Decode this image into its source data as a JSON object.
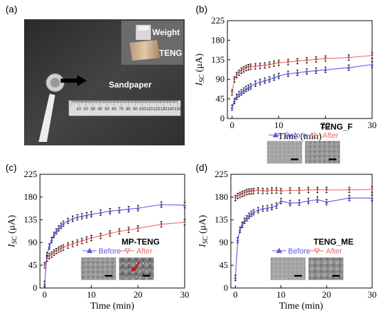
{
  "panels": {
    "a": {
      "label": "(a)",
      "photo_labels": {
        "weight": "Weight",
        "teng": "TENG",
        "sandpaper": "Sandpaper"
      },
      "ruler_numbers": [
        "10",
        "20",
        "30",
        "40",
        "50",
        "60",
        "70",
        "80",
        "90",
        "100",
        "110",
        "120",
        "130",
        "140",
        "150"
      ],
      "colors": {
        "background": "#3b3b3b",
        "ruler": "#dcdcdc",
        "tweezer": "#eeeeee",
        "arrow": "#000000",
        "ruler_accent": "#c8102e"
      }
    }
  },
  "chart_data": [
    {
      "panel": "(b)",
      "type": "line",
      "sample_label": "TENG_F",
      "xlabel": "Time (min)",
      "ylabel_main": "I",
      "ylabel_sub": "SC",
      "ylabel_unit": " (μA)",
      "xlim": [
        -1,
        30
      ],
      "ylim": [
        0,
        225
      ],
      "xticks": [
        0,
        10,
        20,
        30
      ],
      "yticks": [
        0,
        45,
        90,
        135,
        180,
        225
      ],
      "legend_position": "lower-right",
      "series": [
        {
          "name": "Before",
          "color": "#5a5ae6",
          "marker": "triangle-up",
          "x": [
            0,
            0.5,
            1,
            1.5,
            2,
            2.5,
            3,
            3.5,
            4,
            5,
            6,
            7,
            8,
            9,
            10,
            12,
            14,
            16,
            18,
            20,
            25,
            30
          ],
          "y": [
            25,
            40,
            50,
            56,
            60,
            64,
            68,
            71,
            74,
            80,
            84,
            87,
            90,
            94,
            98,
            103,
            105,
            108,
            110,
            112,
            117,
            124
          ]
        },
        {
          "name": "After",
          "color": "#ec6a6a",
          "marker": "triangle-down",
          "x": [
            0,
            0.5,
            1,
            1.5,
            2,
            2.5,
            3,
            3.5,
            4,
            5,
            6,
            7,
            8,
            9,
            10,
            12,
            14,
            16,
            18,
            20,
            25,
            30
          ],
          "y": [
            60,
            90,
            100,
            105,
            110,
            113,
            116,
            118,
            119,
            120,
            121,
            122,
            124,
            126,
            128,
            130,
            132,
            134,
            136,
            138,
            140,
            145
          ]
        }
      ]
    },
    {
      "panel": "(c)",
      "type": "line",
      "sample_label": "MP-TENG",
      "xlabel": "Time (min)",
      "ylabel_main": "I",
      "ylabel_sub": "SC",
      "ylabel_unit": " (μA)",
      "xlim": [
        -1,
        30
      ],
      "ylim": [
        0,
        225
      ],
      "xticks": [
        0,
        10,
        20,
        30
      ],
      "yticks": [
        0,
        45,
        90,
        135,
        180,
        225
      ],
      "legend_position": "lower-right",
      "series": [
        {
          "name": "Before",
          "color": "#5a5ae6",
          "marker": "triangle-up",
          "x": [
            0,
            0.5,
            1,
            1.5,
            2,
            2.5,
            3,
            3.5,
            4,
            5,
            6,
            7,
            8,
            9,
            10,
            12,
            14,
            16,
            18,
            20,
            25,
            30
          ],
          "y": [
            8,
            65,
            82,
            95,
            105,
            112,
            118,
            123,
            127,
            133,
            137,
            140,
            142,
            144,
            146,
            149,
            152,
            154,
            156,
            158,
            165,
            164
          ]
        },
        {
          "name": "After",
          "color": "#ec6a6a",
          "marker": "triangle-down",
          "x": [
            0,
            0.5,
            1,
            1.5,
            2,
            2.5,
            3,
            3.5,
            4,
            5,
            6,
            7,
            8,
            9,
            10,
            12,
            14,
            16,
            18,
            20,
            25,
            30
          ],
          "y": [
            45,
            58,
            63,
            66,
            70,
            73,
            76,
            78,
            80,
            84,
            87,
            90,
            93,
            96,
            99,
            103,
            108,
            112,
            115,
            118,
            126,
            130
          ]
        }
      ]
    },
    {
      "panel": "(d)",
      "type": "line",
      "sample_label": "TENG_ME",
      "xlabel": "Time (min)",
      "ylabel_main": "I",
      "ylabel_sub": "SC",
      "ylabel_unit": " (μA)",
      "xlim": [
        -1,
        30
      ],
      "ylim": [
        0,
        225
      ],
      "xticks": [
        0,
        10,
        20,
        30
      ],
      "yticks": [
        0,
        45,
        90,
        135,
        180,
        225
      ],
      "legend_position": "lower-right",
      "series": [
        {
          "name": "Before",
          "color": "#5a5ae6",
          "marker": "triangle-up",
          "x": [
            0,
            0.5,
            1,
            1.5,
            2,
            2.5,
            3,
            3.5,
            4,
            5,
            6,
            7,
            8,
            9,
            10,
            12,
            14,
            16,
            18,
            20,
            25,
            30
          ],
          "y": [
            20,
            95,
            115,
            125,
            133,
            138,
            143,
            147,
            150,
            154,
            157,
            158,
            160,
            163,
            172,
            168,
            169,
            172,
            175,
            170,
            178,
            178
          ]
        },
        {
          "name": "After",
          "color": "#ec6a6a",
          "marker": "triangle-down",
          "x": [
            0,
            0.5,
            1,
            1.5,
            2,
            2.5,
            3,
            3.5,
            4,
            5,
            6,
            7,
            8,
            9,
            10,
            12,
            14,
            16,
            18,
            20,
            25,
            30
          ],
          "y": [
            178,
            182,
            184,
            186,
            188,
            190,
            191,
            191,
            192,
            193,
            192,
            192,
            193,
            193,
            192,
            193,
            193,
            194,
            194,
            194,
            194,
            195
          ]
        }
      ]
    }
  ]
}
